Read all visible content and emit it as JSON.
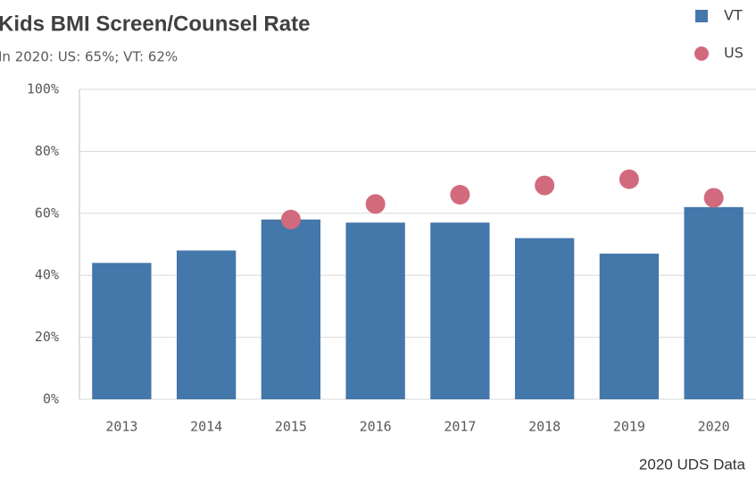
{
  "chart_data": {
    "type": "bar",
    "title": "Kids BMI Screen/Counsel Rate",
    "subtitle": "In 2020: US: 65%; VT: 62%",
    "source": "2020 UDS Data",
    "categories": [
      "2013",
      "2014",
      "2015",
      "2016",
      "2017",
      "2018",
      "2019",
      "2020"
    ],
    "series": [
      {
        "name": "VT",
        "type": "bar",
        "color": "#4477aa",
        "values": [
          44,
          48,
          58,
          57,
          57,
          52,
          47,
          62
        ]
      },
      {
        "name": "US",
        "type": "scatter",
        "color": "#d26a7e",
        "values": [
          null,
          null,
          58,
          63,
          66,
          69,
          71,
          65
        ]
      }
    ],
    "ylim": [
      0,
      100
    ],
    "yticks": [
      {
        "value": 0,
        "label": "0%"
      },
      {
        "value": 20,
        "label": "20%"
      },
      {
        "value": 40,
        "label": "40%"
      },
      {
        "value": 60,
        "label": "60%"
      },
      {
        "value": 80,
        "label": "80%"
      },
      {
        "value": 100,
        "label": "100%"
      }
    ],
    "grid": true,
    "legend": "top-right"
  }
}
